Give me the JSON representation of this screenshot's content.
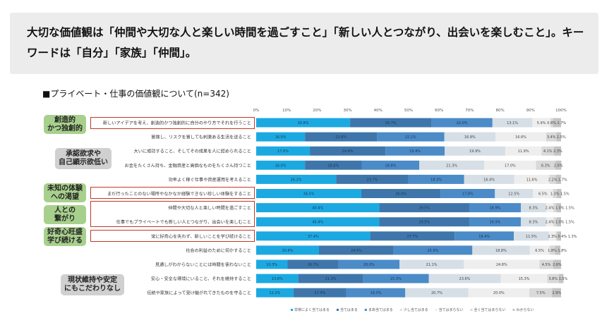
{
  "note": {
    "text": "大切な価値観は「仲間や大切な人と楽しい時間を過ごすこと」「新しい人とつながり、出会いを楽しむこと」。キーワードは「自分」「家族」「仲間」。"
  },
  "chart_title": "■プライベート・仕事の価値観について(n=342)",
  "groups": [
    {
      "label": "創造的\nかつ独創的",
      "color": "green"
    },
    {
      "label": "承認欲求や\n自己顕示欲低い",
      "color": "gray"
    },
    {
      "label": "未知の体験\nへの渇望",
      "color": "green"
    },
    {
      "label": "人との\n繋がり",
      "color": "green"
    },
    {
      "label": "好奇心旺盛\n学び続ける",
      "color": "green"
    },
    {
      "label": "現状維持や安定\nにもこだわりなし",
      "color": "gray"
    }
  ],
  "chart_data": {
    "type": "bar",
    "orientation": "horizontal-stacked-100",
    "title": "■プライベート・仕事の価値観について(n=342)",
    "xlim": [
      0,
      100
    ],
    "x_ticks": [
      "0%",
      "10%",
      "20%",
      "30%",
      "40%",
      "50%",
      "60%",
      "70%",
      "80%",
      "90%",
      "100%"
    ],
    "legend_position": "bottom",
    "categories": [
      "新しいアイデアを考え、創造的かつ独創的に自分のやり方でそれを行うこと",
      "冒険し、リスクを冒しても刺激ある生活を送ること",
      "大いに成功すること、そしてその成果を人に認められること",
      "お金をたくさん持ち、金融資産と高価なものをたくさん持つこと",
      "効率よく稼ぐ仕事や資産運用を考えること",
      "まだ行ったことのない場所やなかなか経験できない珍しい体験をすること",
      "仲間や大切な人と楽しい時間を過ごすこと",
      "仕事でもプライベートでも新しい人とつながり、出会いを楽しむこと",
      "常に好奇心を失わず、新しいことを学び続けること",
      "社会の利益のために何かすること",
      "見通しがわからないことには時間を使わないこと",
      "安心・安全な環境にいること、それを維持すること",
      "伝統や家族によって受け継がれてきたものを守ること"
    ],
    "series": [
      {
        "name": "非常によく当てはまる",
        "color": "#1ca9e1",
        "values": [
          30.8,
          16.0,
          17.6,
          16.0,
          26.2,
          34.5,
          40.4,
          40.4,
          37.4,
          20.6,
          10.3,
          13.8,
          12.2
        ]
      },
      {
        "name": "当てはまる",
        "color": "#3e76ab",
        "values": [
          26.7,
          23.6,
          24.8,
          18.6,
          23.7,
          26.0,
          29.5,
          29.5,
          27.7,
          24.5,
          16.7,
          21.3,
          17.4
        ]
      },
      {
        "name": "まあ当てはまる",
        "color": "#4b8bc8",
        "values": [
          20.0,
          22.1,
          19.4,
          18.9,
          18.3,
          17.8,
          16.9,
          16.9,
          19.4,
          25.8,
          20.0,
          21.5,
          19.3
        ]
      },
      {
        "name": "少し当てはまる",
        "color": "#d6dee6",
        "values": [
          13.1,
          16.8,
          19.9,
          21.3,
          16.4,
          12.5,
          8.3,
          8.3,
          11.5,
          18.8,
          21.1,
          23.6,
          20.7
        ]
      },
      {
        "name": "当てはまらない",
        "color": "#eeeeee",
        "values": [
          5.9,
          16.6,
          11.9,
          17.0,
          11.6,
          6.5,
          2.4,
          2.4,
          2.3,
          6.5,
          24.8,
          15.3,
          20.0
        ]
      },
      {
        "name": "全く当てはまらない",
        "color": "#d9d9d9",
        "values": [
          0.8,
          3.4,
          4.1,
          6.3,
          2.1,
          1.3,
          1.0,
          1.0,
          0.4,
          1.8,
          4.5,
          3.8,
          7.5
        ]
      },
      {
        "name": "わからない",
        "color": "#c4c4c4",
        "values": [
          2.7,
          1.5,
          2.3,
          2.0,
          1.7,
          1.5,
          1.5,
          1.5,
          1.3,
          1.8,
          2.6,
          1.5,
          2.9
        ]
      }
    ]
  }
}
